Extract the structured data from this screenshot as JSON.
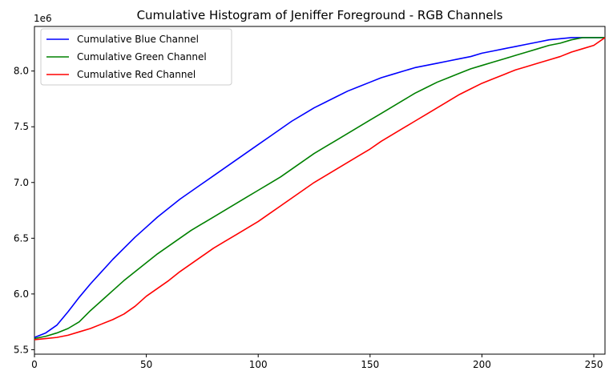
{
  "chart_data": {
    "type": "line",
    "title": "Cumulative Histogram of Jeniffer Foreground - RGB Channels",
    "xlabel": "",
    "ylabel": "",
    "y_offset_label": "1e6",
    "xlim": [
      0,
      255
    ],
    "ylim": [
      5.46,
      8.4
    ],
    "x_ticks": [
      0,
      50,
      100,
      150,
      200,
      250
    ],
    "x_tick_labels": [
      "0",
      "50",
      "100",
      "150",
      "200",
      "250"
    ],
    "y_ticks": [
      5.5,
      6.0,
      6.5,
      7.0,
      7.5,
      8.0
    ],
    "y_tick_labels": [
      "5.5",
      "6.0",
      "6.5",
      "7.0",
      "7.5",
      "8.0"
    ],
    "grid": false,
    "legend_position": "top-left",
    "series": [
      {
        "name": "Cumulative Blue Channel",
        "color": "#0000ff",
        "x": [
          0,
          5,
          10,
          15,
          20,
          25,
          30,
          35,
          40,
          45,
          50,
          55,
          60,
          65,
          70,
          75,
          80,
          85,
          90,
          95,
          100,
          105,
          110,
          115,
          120,
          125,
          130,
          135,
          140,
          145,
          150,
          155,
          160,
          165,
          170,
          175,
          180,
          185,
          190,
          195,
          200,
          205,
          210,
          215,
          220,
          225,
          230,
          235,
          240,
          245,
          250,
          255
        ],
        "values": [
          5.61,
          5.65,
          5.72,
          5.84,
          5.97,
          6.09,
          6.2,
          6.31,
          6.41,
          6.51,
          6.6,
          6.69,
          6.77,
          6.85,
          6.92,
          6.99,
          7.06,
          7.13,
          7.2,
          7.27,
          7.34,
          7.41,
          7.48,
          7.55,
          7.61,
          7.67,
          7.72,
          7.77,
          7.82,
          7.86,
          7.9,
          7.94,
          7.97,
          8.0,
          8.03,
          8.05,
          8.07,
          8.09,
          8.11,
          8.13,
          8.16,
          8.18,
          8.2,
          8.22,
          8.24,
          8.26,
          8.28,
          8.29,
          8.3,
          8.3,
          8.3,
          8.3
        ]
      },
      {
        "name": "Cumulative Green Channel",
        "color": "#008000",
        "x": [
          0,
          5,
          10,
          15,
          20,
          25,
          30,
          35,
          40,
          45,
          50,
          55,
          60,
          65,
          70,
          75,
          80,
          85,
          90,
          95,
          100,
          105,
          110,
          115,
          120,
          125,
          130,
          135,
          140,
          145,
          150,
          155,
          160,
          165,
          170,
          175,
          180,
          185,
          190,
          195,
          200,
          205,
          210,
          215,
          220,
          225,
          230,
          235,
          240,
          245,
          250,
          255
        ],
        "values": [
          5.6,
          5.62,
          5.65,
          5.69,
          5.75,
          5.85,
          5.94,
          6.03,
          6.12,
          6.2,
          6.28,
          6.36,
          6.43,
          6.5,
          6.57,
          6.63,
          6.69,
          6.75,
          6.81,
          6.87,
          6.93,
          6.99,
          7.05,
          7.12,
          7.19,
          7.26,
          7.32,
          7.38,
          7.44,
          7.5,
          7.56,
          7.62,
          7.68,
          7.74,
          7.8,
          7.85,
          7.9,
          7.94,
          7.98,
          8.02,
          8.05,
          8.08,
          8.11,
          8.14,
          8.17,
          8.2,
          8.23,
          8.25,
          8.28,
          8.3,
          8.3,
          8.3
        ]
      },
      {
        "name": "Cumulative Red Channel",
        "color": "#ff0000",
        "x": [
          0,
          5,
          10,
          15,
          20,
          25,
          30,
          35,
          40,
          45,
          50,
          55,
          60,
          65,
          70,
          75,
          80,
          85,
          90,
          95,
          100,
          105,
          110,
          115,
          120,
          125,
          130,
          135,
          140,
          145,
          150,
          155,
          160,
          165,
          170,
          175,
          180,
          185,
          190,
          195,
          200,
          205,
          210,
          215,
          220,
          225,
          230,
          235,
          240,
          245,
          250,
          255
        ],
        "values": [
          5.59,
          5.6,
          5.61,
          5.63,
          5.66,
          5.69,
          5.73,
          5.77,
          5.82,
          5.89,
          5.98,
          6.05,
          6.12,
          6.2,
          6.27,
          6.34,
          6.41,
          6.47,
          6.53,
          6.59,
          6.65,
          6.72,
          6.79,
          6.86,
          6.93,
          7.0,
          7.06,
          7.12,
          7.18,
          7.24,
          7.3,
          7.37,
          7.43,
          7.49,
          7.55,
          7.61,
          7.67,
          7.73,
          7.79,
          7.84,
          7.89,
          7.93,
          7.97,
          8.01,
          8.04,
          8.07,
          8.1,
          8.13,
          8.17,
          8.2,
          8.23,
          8.3
        ]
      }
    ]
  }
}
